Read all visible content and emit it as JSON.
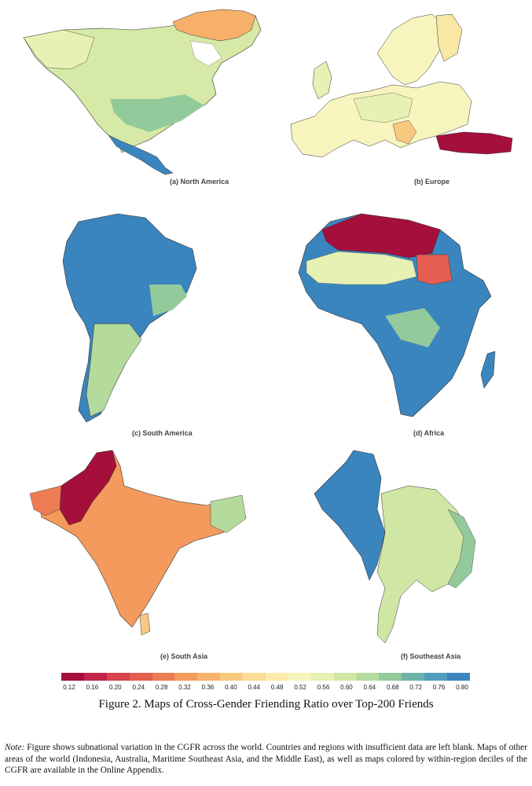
{
  "figure": {
    "caption": "Figure 2. Maps of Cross-Gender Friending Ratio over Top-200 Friends",
    "note_label": "Note:",
    "note_text": "Figure shows subnational variation in the CGFR across the world. Countries and regions with insufficient data are left blank. Maps of other areas of the world (Indonesia, Australia, Maritime Southeast Asia, and the Middle East), as well as maps colored by within-region deciles of the CGFR are available in the Online Appendix."
  },
  "panels": [
    {
      "id": "north-america",
      "label": "(a) North America",
      "dominant_color": "#cfe6a4"
    },
    {
      "id": "europe",
      "label": "(b) Europe",
      "dominant_color": "#f7f2c0"
    },
    {
      "id": "south-america",
      "label": "(c) South America",
      "dominant_color": "#3f8fc0"
    },
    {
      "id": "africa",
      "label": "(d) Africa",
      "dominant_color": "#3f8fc0"
    },
    {
      "id": "south-asia",
      "label": "(e) South Asia",
      "dominant_color": "#ee9a5c"
    },
    {
      "id": "southeast-asia",
      "label": "(f) Southeast Asia",
      "dominant_color": "#cfe6a4"
    }
  ],
  "legend": {
    "title": "",
    "ticks": [
      "0.12",
      "0.16",
      "0.20",
      "0.24",
      "0.28",
      "0.32",
      "0.36",
      "0.40",
      "0.44",
      "0.48",
      "0.52",
      "0.56",
      "0.60",
      "0.64",
      "0.68",
      "0.72",
      "0.76",
      "0.80"
    ],
    "colors": [
      "#a50f3c",
      "#c2254a",
      "#d8434c",
      "#e55e4f",
      "#ee7c53",
      "#f39a5c",
      "#f7b46c",
      "#f9c97f",
      "#fbdc94",
      "#fcecac",
      "#f7f4be",
      "#e6f1b3",
      "#cfe6a4",
      "#b4da9c",
      "#93ca9c",
      "#6fb3a8",
      "#4f9dbf",
      "#3a85be"
    ]
  }
}
